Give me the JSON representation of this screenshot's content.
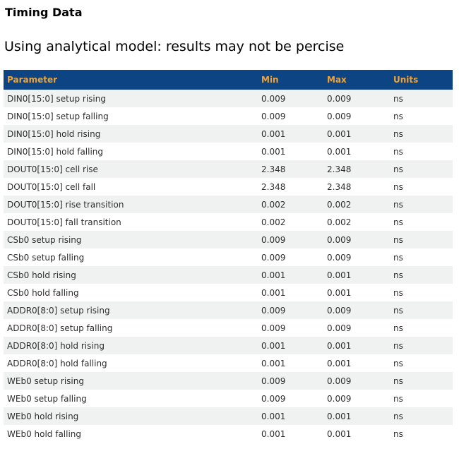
{
  "page": {
    "title": "Timing Data",
    "subtitle": "Using analytical model: results may not be percise"
  },
  "table": {
    "columns": [
      "Parameter",
      "Min",
      "Max",
      "Units"
    ],
    "rows": [
      [
        "DIN0[15:0] setup rising",
        "0.009",
        "0.009",
        "ns"
      ],
      [
        "DIN0[15:0] setup falling",
        "0.009",
        "0.009",
        "ns"
      ],
      [
        "DIN0[15:0] hold rising",
        "0.001",
        "0.001",
        "ns"
      ],
      [
        "DIN0[15:0] hold falling",
        "0.001",
        "0.001",
        "ns"
      ],
      [
        "DOUT0[15:0] cell rise",
        "2.348",
        "2.348",
        "ns"
      ],
      [
        "DOUT0[15:0] cell fall",
        "2.348",
        "2.348",
        "ns"
      ],
      [
        "DOUT0[15:0] rise transition",
        "0.002",
        "0.002",
        "ns"
      ],
      [
        "DOUT0[15:0] fall transition",
        "0.002",
        "0.002",
        "ns"
      ],
      [
        "CSb0 setup rising",
        "0.009",
        "0.009",
        "ns"
      ],
      [
        "CSb0 setup falling",
        "0.009",
        "0.009",
        "ns"
      ],
      [
        "CSb0 hold rising",
        "0.001",
        "0.001",
        "ns"
      ],
      [
        "CSb0 hold falling",
        "0.001",
        "0.001",
        "ns"
      ],
      [
        "ADDR0[8:0] setup rising",
        "0.009",
        "0.009",
        "ns"
      ],
      [
        "ADDR0[8:0] setup falling",
        "0.009",
        "0.009",
        "ns"
      ],
      [
        "ADDR0[8:0] hold rising",
        "0.001",
        "0.001",
        "ns"
      ],
      [
        "ADDR0[8:0] hold falling",
        "0.001",
        "0.001",
        "ns"
      ],
      [
        "WEb0 setup rising",
        "0.009",
        "0.009",
        "ns"
      ],
      [
        "WEb0 setup falling",
        "0.009",
        "0.009",
        "ns"
      ],
      [
        "WEb0 hold rising",
        "0.001",
        "0.001",
        "ns"
      ],
      [
        "WEb0 hold falling",
        "0.001",
        "0.001",
        "ns"
      ]
    ]
  },
  "colors": {
    "header_bg": "#0d4584",
    "header_text": "#efa43a",
    "row_alt_bg": "#f0f1f1"
  }
}
